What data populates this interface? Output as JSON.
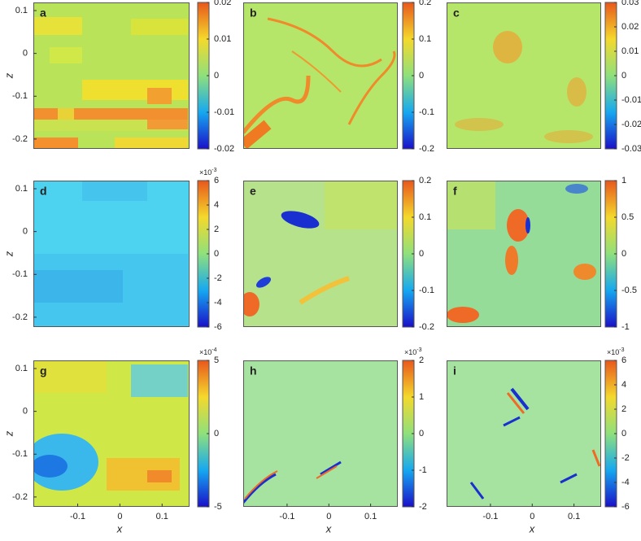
{
  "chart_data": [
    {
      "type": "heatmap",
      "label": "a",
      "ylabel": "z",
      "ylim": [
        -0.223,
        0.119
      ],
      "yticks": [
        0.1,
        0,
        -0.1,
        -0.2
      ],
      "clim": [
        -0.02,
        0.02
      ],
      "cticks": [
        -0.02,
        -0.01,
        0,
        0.01,
        0.02
      ]
    },
    {
      "type": "heatmap",
      "label": "b",
      "clim": [
        -0.2,
        0.2
      ],
      "cticks": [
        -0.2,
        -0.1,
        0,
        0.1,
        0.2
      ]
    },
    {
      "type": "heatmap",
      "label": "c",
      "clim": [
        -0.03,
        0.03
      ],
      "cticks": [
        -0.03,
        -0.02,
        -0.01,
        0,
        0.01,
        0.02,
        0.03
      ]
    },
    {
      "type": "heatmap",
      "label": "d",
      "ylabel": "z",
      "ylim": [
        -0.223,
        0.119
      ],
      "yticks": [
        0.1,
        0,
        -0.1,
        -0.2
      ],
      "clim": [
        -6,
        6
      ],
      "cticks": [
        -6,
        -4,
        -2,
        0,
        2,
        4,
        6
      ],
      "cscale": "×10",
      "cexponent": "-3"
    },
    {
      "type": "heatmap",
      "label": "e",
      "clim": [
        -0.2,
        0.2
      ],
      "cticks": [
        -0.2,
        -0.1,
        0,
        0.1,
        0.2
      ]
    },
    {
      "type": "heatmap",
      "label": "f",
      "clim": [
        -1,
        1
      ],
      "cticks": [
        -1,
        -0.5,
        0,
        0.5,
        1
      ]
    },
    {
      "type": "heatmap",
      "label": "g",
      "ylabel": "z",
      "ylim": [
        -0.223,
        0.119
      ],
      "yticks": [
        0.1,
        0,
        -0.1,
        -0.2
      ],
      "xlabel": "x",
      "xlim": [
        -0.205,
        0.165
      ],
      "xticks": [
        -0.1,
        0,
        0.1
      ],
      "clim": [
        -5,
        5
      ],
      "cticks": [
        -5,
        0,
        5
      ],
      "cscale": "×10",
      "cexponent": "-4"
    },
    {
      "type": "heatmap",
      "label": "h",
      "xlabel": "x",
      "xlim": [
        -0.205,
        0.165
      ],
      "xticks": [
        -0.1,
        0,
        0.1
      ],
      "clim": [
        -2,
        2
      ],
      "cticks": [
        -2,
        -1,
        0,
        1,
        2
      ],
      "cscale": "×10",
      "cexponent": "-3"
    },
    {
      "type": "heatmap",
      "label": "i",
      "xlabel": "x",
      "xlim": [
        -0.205,
        0.165
      ],
      "xticks": [
        -0.1,
        0,
        0.1
      ],
      "clim": [
        -6,
        6
      ],
      "cticks": [
        -6,
        -4,
        -2,
        0,
        2,
        4,
        6
      ],
      "cscale": "×10",
      "cexponent": "-3"
    }
  ]
}
